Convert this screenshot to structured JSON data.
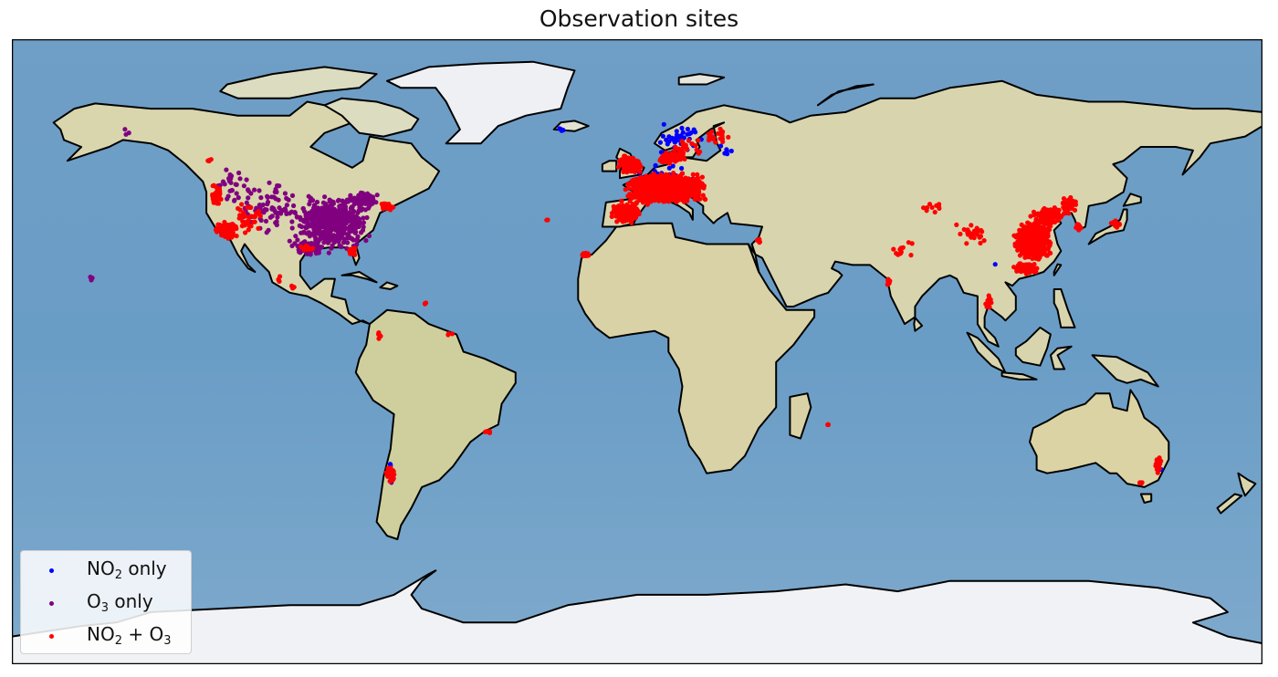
{
  "chart_data": {
    "type": "scatter",
    "title": "Observation sites",
    "xlim": [
      -180,
      180
    ],
    "ylim": [
      -90,
      90
    ],
    "projection": "PlateCarree",
    "legend_position": "lower-left",
    "legend": [
      {
        "label_main": "NO",
        "label_sub": "2",
        "label_rest": " only",
        "color": "#0000ff"
      },
      {
        "label_main": "O",
        "label_sub": "3",
        "label_rest": " only",
        "color": "#800080"
      },
      {
        "label_main": "NO",
        "label_sub": "2",
        "label_rest": " + O",
        "label_sub2": "3",
        "color": "#ff0000"
      }
    ],
    "series": [
      {
        "name_key": "NO2 only",
        "color": "#0000ff",
        "clusters": [
          {
            "lon": 12,
            "lat": 61,
            "dlon": 14,
            "dlat": 6,
            "n": 40
          },
          {
            "lon": 7,
            "lat": 50,
            "dlon": 10,
            "dlat": 5,
            "n": 40
          },
          {
            "lon": 26,
            "lat": 58,
            "dlon": 3,
            "dlat": 2,
            "n": 6
          },
          {
            "lon": -22,
            "lat": 64,
            "dlon": 2,
            "dlat": 0.6,
            "n": 4
          },
          {
            "lon": -71,
            "lat": -33,
            "dlon": 1,
            "dlat": 1,
            "n": 2
          },
          {
            "lon": 103,
            "lat": 25,
            "dlon": 0.5,
            "dlat": 0.5,
            "n": 1
          },
          {
            "lon": 151,
            "lat": -34,
            "dlon": 1,
            "dlat": 1,
            "n": 2
          }
        ]
      },
      {
        "name_key": "O3 only",
        "color": "#800080",
        "clusters": [
          {
            "lon": -88,
            "lat": 37,
            "dlon": 13,
            "dlat": 9,
            "n": 520
          },
          {
            "lon": -106,
            "lat": 42,
            "dlon": 10,
            "dlat": 9,
            "n": 80
          },
          {
            "lon": -116,
            "lat": 48,
            "dlon": 7,
            "dlat": 7,
            "n": 30
          },
          {
            "lon": -79,
            "lat": 44,
            "dlon": 5,
            "dlat": 3,
            "n": 80
          },
          {
            "lon": -95,
            "lat": 30,
            "dlon": 6,
            "dlat": 3,
            "n": 60
          },
          {
            "lon": -147,
            "lat": 63,
            "dlon": 3,
            "dlat": 2,
            "n": 3
          },
          {
            "lon": -157,
            "lat": 21,
            "dlon": 1,
            "dlat": 1,
            "n": 3
          },
          {
            "lon": -71,
            "lat": -36,
            "dlon": 2,
            "dlat": 4,
            "n": 4
          }
        ]
      },
      {
        "name_key": "NO2 + O3",
        "color": "#ff0000",
        "clusters": [
          {
            "lon": 8,
            "lat": 47,
            "dlon": 13,
            "dlat": 5,
            "n": 1500
          },
          {
            "lon": -3,
            "lat": 40,
            "dlon": 5,
            "dlat": 3.5,
            "n": 250
          },
          {
            "lon": -2,
            "lat": 54,
            "dlon": 4,
            "dlat": 3,
            "n": 150
          },
          {
            "lon": 10,
            "lat": 56,
            "dlon": 5,
            "dlat": 2,
            "n": 80
          },
          {
            "lon": 23,
            "lat": 62,
            "dlon": 5,
            "dlat": 3,
            "n": 20
          },
          {
            "lon": 15,
            "lat": 59,
            "dlon": 6,
            "dlat": 4,
            "n": 25
          },
          {
            "lon": -15,
            "lat": 28,
            "dlon": 2,
            "dlat": 1,
            "n": 15
          },
          {
            "lon": 35,
            "lat": 32,
            "dlon": 1,
            "dlat": 1,
            "n": 6
          },
          {
            "lon": 114,
            "lat": 32,
            "dlon": 6,
            "dlat": 6,
            "n": 900
          },
          {
            "lon": 118,
            "lat": 39,
            "dlon": 5,
            "dlat": 3,
            "n": 120
          },
          {
            "lon": 112,
            "lat": 24,
            "dlon": 4,
            "dlat": 2,
            "n": 100
          },
          {
            "lon": 124,
            "lat": 42,
            "dlon": 3,
            "dlat": 3,
            "n": 40
          },
          {
            "lon": 97,
            "lat": 34,
            "dlon": 6,
            "dlat": 4,
            "n": 30
          },
          {
            "lon": 85,
            "lat": 42,
            "dlon": 4,
            "dlat": 3,
            "n": 10
          },
          {
            "lon": 77,
            "lat": 30,
            "dlon": 5,
            "dlat": 4,
            "n": 12
          },
          {
            "lon": 101,
            "lat": 14,
            "dlon": 2,
            "dlat": 3,
            "n": 10
          },
          {
            "lon": 127,
            "lat": 36,
            "dlon": 1,
            "dlat": 1.5,
            "n": 20
          },
          {
            "lon": 138,
            "lat": 37,
            "dlon": 2,
            "dlat": 2,
            "n": 15
          },
          {
            "lon": 72,
            "lat": 20,
            "dlon": 2,
            "dlat": 2,
            "n": 6
          },
          {
            "lon": -118,
            "lat": 35,
            "dlon": 4,
            "dlat": 3,
            "n": 120
          },
          {
            "lon": -121,
            "lat": 45,
            "dlon": 2,
            "dlat": 4,
            "n": 40
          },
          {
            "lon": -112,
            "lat": 39,
            "dlon": 5,
            "dlat": 6,
            "n": 35
          },
          {
            "lon": -82,
            "lat": 29,
            "dlon": 1.5,
            "dlat": 2,
            "n": 20
          },
          {
            "lon": -72,
            "lat": 42,
            "dlon": 3,
            "dlat": 1.5,
            "n": 25
          },
          {
            "lon": -95,
            "lat": 30,
            "dlon": 3,
            "dlat": 1.5,
            "n": 15
          },
          {
            "lon": -71,
            "lat": -35,
            "dlon": 1.5,
            "dlat": 3,
            "n": 40
          },
          {
            "lon": -43,
            "lat": -23,
            "dlon": 1,
            "dlat": 0.5,
            "n": 6
          },
          {
            "lon": -74,
            "lat": 5,
            "dlon": 1.5,
            "dlat": 3,
            "n": 5
          },
          {
            "lon": -54,
            "lat": 5,
            "dlon": 1,
            "dlat": 1,
            "n": 3
          },
          {
            "lon": -61,
            "lat": 14,
            "dlon": 0.5,
            "dlat": 0.5,
            "n": 3
          },
          {
            "lon": -26,
            "lat": 38,
            "dlon": 0.5,
            "dlat": 0.5,
            "n": 2
          },
          {
            "lon": 55,
            "lat": -21,
            "dlon": 0.5,
            "dlat": 0.5,
            "n": 3
          },
          {
            "lon": 150,
            "lat": -33,
            "dlon": 1.5,
            "dlat": 3,
            "n": 20
          },
          {
            "lon": 145,
            "lat": -37.8,
            "dlon": 1,
            "dlat": 0.3,
            "n": 10
          },
          {
            "lon": -103,
            "lat": 21,
            "dlon": 2,
            "dlat": 2,
            "n": 4
          },
          {
            "lon": -99,
            "lat": 19,
            "dlon": 1,
            "dlat": 1,
            "n": 4
          },
          {
            "lon": -123,
            "lat": 55,
            "dlon": 2,
            "dlat": 3,
            "n": 4
          }
        ]
      }
    ]
  }
}
